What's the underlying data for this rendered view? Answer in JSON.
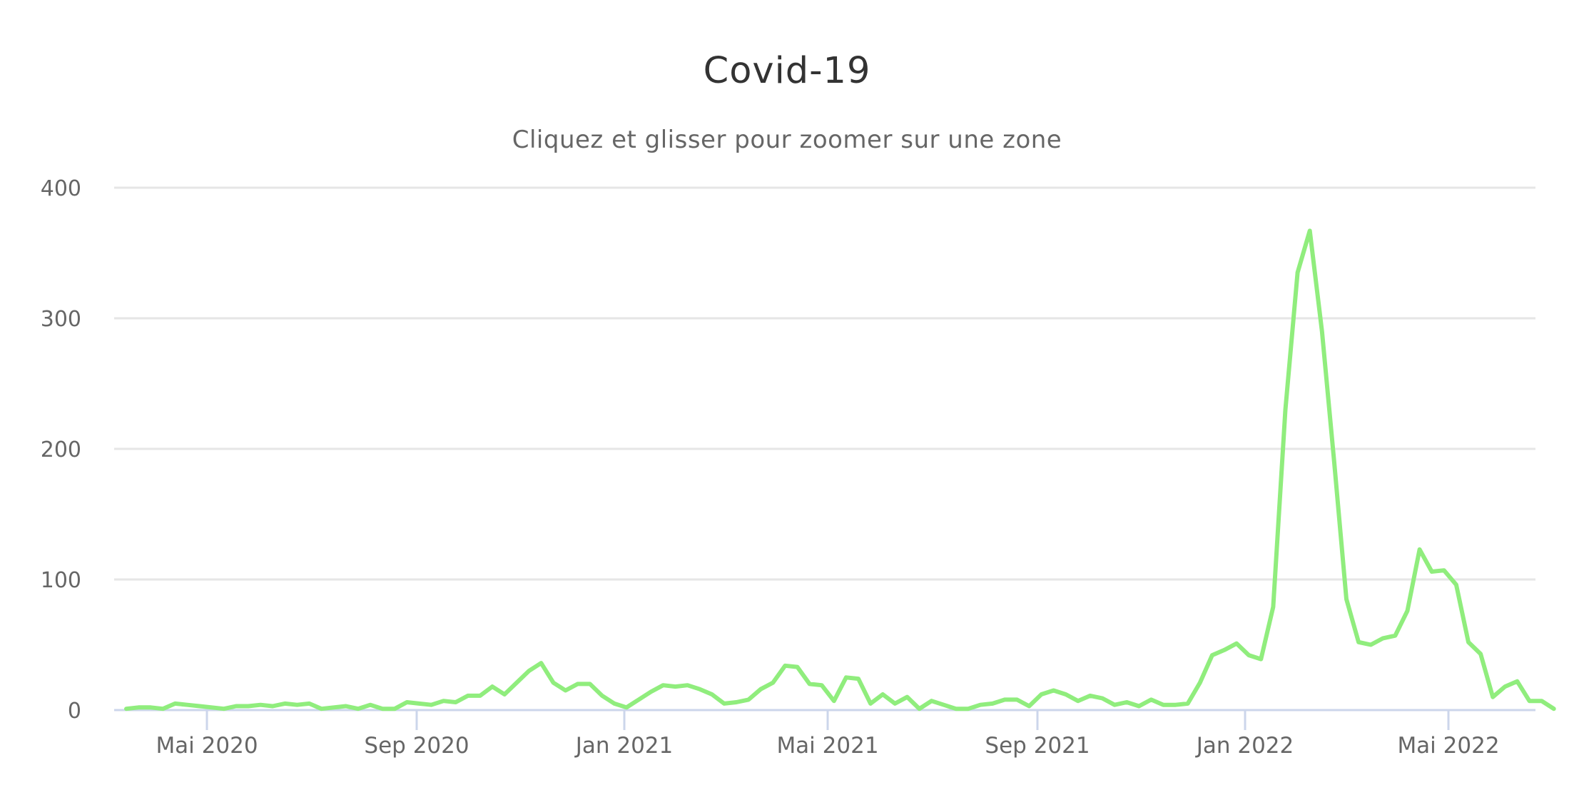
{
  "header": {
    "title": "Covid-19",
    "subtitle": "Cliquez et glisser pour zoomer sur une zone"
  },
  "colors": {
    "series": "#90ed7d",
    "grid": "#e6e6e6",
    "axis": "#ccd6eb",
    "label": "#666666",
    "title": "#333333"
  },
  "axes": {
    "y_ticks": [
      "0",
      "100",
      "200",
      "300",
      "400"
    ],
    "x_ticks": [
      "Mai 2020",
      "Sep 2020",
      "Jan 2021",
      "Mai 2021",
      "Sep 2021",
      "Jan 2022",
      "Mai 2022"
    ]
  },
  "chart_data": {
    "type": "line",
    "title": "Covid-19",
    "subtitle": "Cliquez et glisser pour zoomer sur une zone",
    "xlabel": "",
    "ylabel": "",
    "ylim": [
      0,
      400
    ],
    "yticks": [
      0,
      100,
      200,
      300,
      400
    ],
    "xticks": [
      "Mai 2020",
      "Sep 2020",
      "Jan 2021",
      "Mai 2021",
      "Sep 2021",
      "Jan 2022",
      "Mai 2022"
    ],
    "grid": true,
    "legend": "none",
    "x_interval": "weekly",
    "x_start": "2020-03-16",
    "series": [
      {
        "name": "Covid-19",
        "color": "#90ed7d",
        "values": [
          1,
          2,
          2,
          1,
          5,
          4,
          3,
          2,
          1,
          3,
          3,
          4,
          3,
          5,
          4,
          5,
          1,
          2,
          3,
          1,
          4,
          1,
          1,
          6,
          5,
          4,
          7,
          6,
          11,
          11,
          18,
          12,
          21,
          30,
          36,
          21,
          15,
          20,
          20,
          11,
          5,
          2,
          8,
          14,
          19,
          18,
          19,
          16,
          12,
          5,
          6,
          8,
          16,
          21,
          34,
          33,
          20,
          19,
          7,
          25,
          24,
          5,
          12,
          5,
          10,
          1,
          7,
          4,
          1,
          1,
          4,
          5,
          8,
          8,
          3,
          12,
          15,
          12,
          7,
          11,
          9,
          4,
          6,
          3,
          8,
          4,
          4,
          5,
          21,
          42,
          46,
          51,
          42,
          39,
          79,
          230,
          335,
          367,
          290,
          190,
          85,
          52,
          50,
          55,
          57,
          76,
          123,
          106,
          107,
          96,
          52,
          43,
          10,
          18,
          22,
          7,
          7,
          1
        ]
      }
    ]
  }
}
